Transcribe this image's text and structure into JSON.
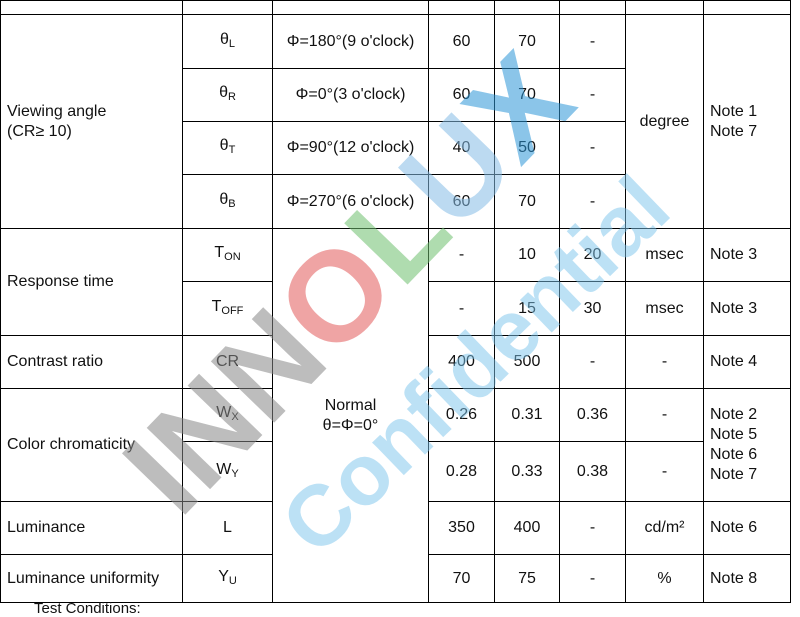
{
  "table": {
    "viewing": {
      "item": [
        "Viewing angle",
        "(CR≥ 10)"
      ],
      "unit": "degree",
      "remark": [
        "Note 1",
        "Note 7"
      ],
      "rows": [
        {
          "symbol": "θ",
          "sub": "L",
          "condition": "Φ=180°(9 o'clock)",
          "min": 60,
          "typ": 70,
          "max": "-"
        },
        {
          "symbol": "θ",
          "sub": "R",
          "condition": "Φ=0°(3 o'clock)",
          "min": 60,
          "typ": 70,
          "max": "-"
        },
        {
          "symbol": "θ",
          "sub": "T",
          "condition": "Φ=90°(12 o'clock)",
          "min": 40,
          "typ": 50,
          "max": "-"
        },
        {
          "symbol": "θ",
          "sub": "B",
          "condition": "Φ=270°(6 o'clock)",
          "min": 60,
          "typ": 70,
          "max": "-"
        }
      ]
    },
    "condition_normal": [
      "Normal",
      "θ=Φ=0°"
    ],
    "response": {
      "item": "Response time",
      "rows": [
        {
          "symbol": "T",
          "sub": "ON",
          "min": "-",
          "typ": 10,
          "max": 20,
          "unit": "msec",
          "remark": "Note 3"
        },
        {
          "symbol": "T",
          "sub": "OFF",
          "min": "-",
          "typ": 15,
          "max": 30,
          "unit": "msec",
          "remark": "Note 3"
        }
      ]
    },
    "contrast": {
      "item": "Contrast ratio",
      "symbol": "CR",
      "min": 400,
      "typ": 500,
      "max": "-",
      "unit": "-",
      "remark": "Note 4"
    },
    "chromaticity": {
      "item": "Color chromaticity",
      "remark": [
        "Note 2",
        "Note 5",
        "Note 6",
        "Note 7"
      ],
      "rows": [
        {
          "symbol": "W",
          "sub": "X",
          "min": 0.26,
          "typ": 0.31,
          "max": 0.36,
          "unit": "-"
        },
        {
          "symbol": "W",
          "sub": "Y",
          "min": 0.28,
          "typ": 0.33,
          "max": 0.38,
          "unit": "-"
        }
      ]
    },
    "luminance": {
      "item": "Luminance",
      "symbol": "L",
      "min": 350,
      "typ": 400,
      "max": "-",
      "unit": "cd/m²",
      "remark": "Note 6"
    },
    "uniformity": {
      "item": "Luminance uniformity",
      "symbol": "Y",
      "sub": "U",
      "min": 70,
      "typ": 75,
      "max": "-",
      "unit": "%",
      "remark": "Note 8"
    }
  },
  "footer": "Test Conditions:",
  "watermark": {
    "brand_letters": [
      "I",
      "N",
      "N",
      "O",
      "L",
      "U",
      "X"
    ],
    "label": "Confidential"
  }
}
